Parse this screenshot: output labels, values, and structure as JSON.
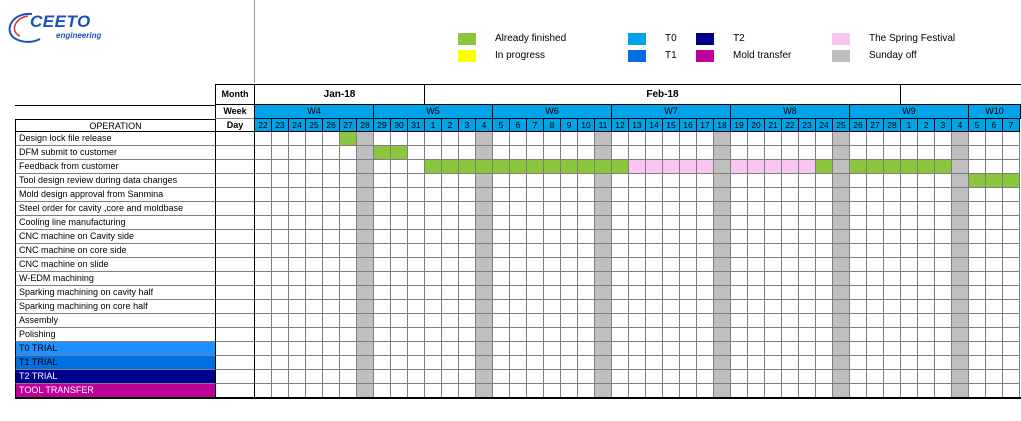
{
  "logo": {
    "name": "CEETO",
    "sub": "engineering"
  },
  "legend": [
    {
      "label": "Already finished",
      "color": "#8CC63F"
    },
    {
      "label": "In progress",
      "color": "#FFFF00"
    },
    {
      "label": "T0",
      "color": "#00A2E8"
    },
    {
      "label": "T1",
      "color": "#0070E0"
    },
    {
      "label": "T2",
      "color": "#00008B"
    },
    {
      "label": "Mold transfer",
      "color": "#C0009A"
    },
    {
      "label": "The Spring Festival",
      "color": "#F9C6F1"
    },
    {
      "label": "Sunday off",
      "color": "#BFBFBF"
    }
  ],
  "headers": {
    "month": "Month",
    "week": "Week",
    "day": "Day",
    "operation": "OPERATION"
  },
  "months": [
    {
      "label": "Jan-18"
    },
    {
      "label": "Feb-18"
    }
  ],
  "weeks": [
    "W4",
    "W5",
    "W6",
    "W7",
    "W8",
    "W9",
    "W10"
  ],
  "days": [
    "22",
    "23",
    "24",
    "25",
    "26",
    "27",
    "28",
    "29",
    "30",
    "31",
    "1",
    "2",
    "3",
    "4",
    "5",
    "6",
    "7",
    "8",
    "9",
    "10",
    "11",
    "12",
    "13",
    "14",
    "15",
    "16",
    "17",
    "18",
    "19",
    "20",
    "21",
    "22",
    "23",
    "24",
    "25",
    "26",
    "27",
    "28",
    "1",
    "2",
    "3",
    "4",
    "5",
    "6",
    "7"
  ],
  "sunday_indices": [
    6,
    13,
    20,
    27,
    34,
    41
  ],
  "operations": [
    {
      "label": "Design lock file release",
      "bars": [
        {
          "from": 5,
          "to": 5,
          "status": "finished"
        }
      ]
    },
    {
      "label": "DFM submit to customer",
      "bars": [
        {
          "from": 7,
          "to": 8,
          "status": "finished"
        }
      ]
    },
    {
      "label": "Feedback from customer",
      "bars": [
        {
          "from": 10,
          "to": 21,
          "status": "finished"
        },
        {
          "from": 22,
          "to": 26,
          "status": "spring"
        },
        {
          "from": 28,
          "to": 32,
          "status": "spring"
        },
        {
          "from": 33,
          "to": 33,
          "status": "finished"
        },
        {
          "from": 35,
          "to": 40,
          "status": "finished"
        }
      ]
    },
    {
      "label": "Tool design review during data changes",
      "bars": [
        {
          "from": 42,
          "to": 44,
          "status": "finished"
        }
      ]
    },
    {
      "label": "Mold design approval from Sanmina",
      "bars": []
    },
    {
      "label": "Steel order for cavity ,core and moldbase",
      "bars": []
    },
    {
      "label": "Cooling line manufacturing",
      "bars": []
    },
    {
      "label": "CNC machine on Cavity side",
      "bars": []
    },
    {
      "label": "CNC machine on core side",
      "bars": []
    },
    {
      "label": "CNC machine on slide",
      "bars": []
    },
    {
      "label": "W-EDM machining",
      "bars": []
    },
    {
      "label": "Sparking machining on cavity half",
      "bars": []
    },
    {
      "label": "Sparking machining on core half",
      "bars": []
    },
    {
      "label": "Assembly",
      "bars": []
    },
    {
      "label": "Polishing",
      "bars": []
    },
    {
      "label": "T0 TRIAL",
      "bars": [],
      "bg": "#1E90FF",
      "fg": "#000000"
    },
    {
      "label": "T1 TRIAL",
      "bars": [],
      "bg": "#0070E0",
      "fg": "#000000"
    },
    {
      "label": "T2 TRIAL",
      "bars": [],
      "bg": "#000090",
      "fg": "#FFFFFF"
    },
    {
      "label": "TOOL TRANSFER",
      "bars": [],
      "bg": "#C0009A",
      "fg": "#FFFFFF"
    }
  ],
  "colors": {
    "finished": "#8CC63F",
    "spring": "#F9C6F1",
    "sunday": "#BFBFBF",
    "week_bg": "#00A2E8",
    "day_bg": "#00A2E8",
    "grid": "#7F7F7F"
  }
}
